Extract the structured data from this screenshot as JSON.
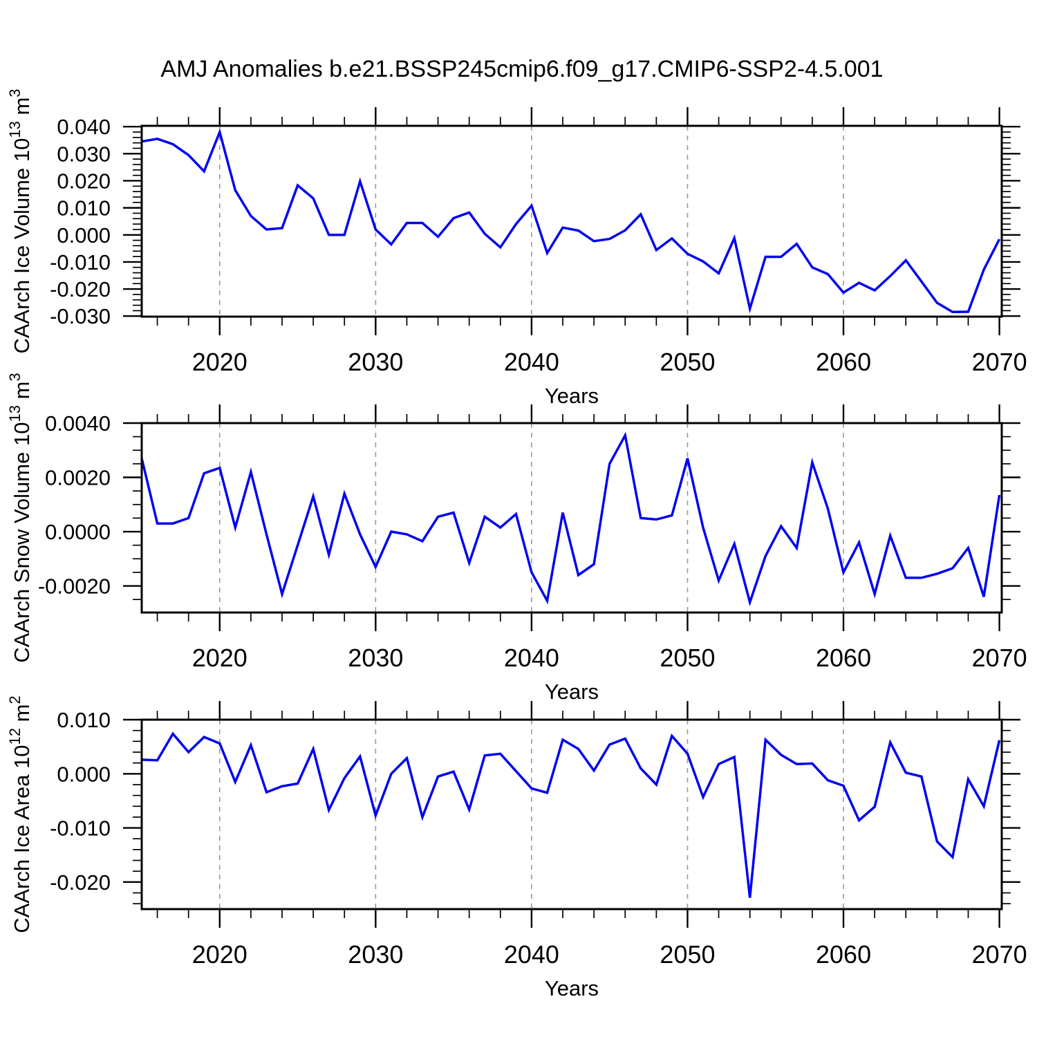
{
  "title": "AMJ Anomalies b.e21.BSSP245cmip6.f09_g17.CMIP6-SSP2-4.5.001",
  "style": {
    "line_color": "#0000f2",
    "grid_color": "#999999",
    "axis_color": "#000000",
    "text_color": "#000000"
  },
  "chart_data": {
    "type": "line",
    "x_label": "Years",
    "x": [
      2015,
      2016,
      2017,
      2018,
      2019,
      2020,
      2021,
      2022,
      2023,
      2024,
      2025,
      2026,
      2027,
      2028,
      2029,
      2030,
      2031,
      2032,
      2033,
      2034,
      2035,
      2036,
      2037,
      2038,
      2039,
      2040,
      2041,
      2042,
      2043,
      2044,
      2045,
      2046,
      2047,
      2048,
      2049,
      2050,
      2051,
      2052,
      2053,
      2054,
      2055,
      2056,
      2057,
      2058,
      2059,
      2060,
      2061,
      2062,
      2063,
      2064,
      2065,
      2066,
      2067,
      2068,
      2069,
      2070
    ],
    "xlim": [
      2015,
      2070.15
    ],
    "x_major_ticks": [
      {
        "v": 2020,
        "t": "2020"
      },
      {
        "v": 2030,
        "t": "2030"
      },
      {
        "v": 2040,
        "t": "2040"
      },
      {
        "v": 2050,
        "t": "2050"
      },
      {
        "v": 2060,
        "t": "2060"
      },
      {
        "v": 2070,
        "t": "2070"
      }
    ],
    "x_minor_start": 2016,
    "x_minor_end": 2068,
    "x_minor_step": 2,
    "grid_years": [
      2020,
      2030,
      2040,
      2050,
      2060
    ],
    "panels": [
      {
        "ylabel": "CAArch Ice Volume 10^13 m^3",
        "ylim": [
          -0.0302,
          0.0403
        ],
        "yticks": [
          {
            "v": 0.04,
            "t": "0.040"
          },
          {
            "v": 0.03,
            "t": "0.030"
          },
          {
            "v": 0.02,
            "t": "0.020"
          },
          {
            "v": 0.01,
            "t": "0.010"
          },
          {
            "v": 0.0,
            "t": "0.000"
          },
          {
            "v": -0.01,
            "t": "-0.010"
          },
          {
            "v": -0.02,
            "t": "-0.020"
          },
          {
            "v": -0.03,
            "t": "-0.030"
          }
        ],
        "y_minor_step": 0.002,
        "values": [
          0.0345,
          0.0355,
          0.0335,
          0.0295,
          0.0235,
          0.038,
          0.0165,
          0.007,
          0.002,
          0.0025,
          0.0183,
          0.0135,
          0.0,
          0.0,
          0.0198,
          0.002,
          -0.0035,
          0.0044,
          0.0044,
          -0.0007,
          0.0062,
          0.0083,
          0.0004,
          -0.0046,
          0.004,
          0.0108,
          -0.0067,
          0.0027,
          0.0016,
          -0.0023,
          -0.0015,
          0.0017,
          0.0076,
          -0.0056,
          -0.0013,
          -0.007,
          -0.0098,
          -0.0142,
          -0.0012,
          -0.0273,
          -0.0081,
          -0.0081,
          -0.0033,
          -0.012,
          -0.0145,
          -0.0213,
          -0.0177,
          -0.0205,
          -0.0152,
          -0.0094,
          -0.0172,
          -0.0251,
          -0.0285,
          -0.0284,
          -0.0128,
          -0.0016
        ]
      },
      {
        "ylabel": "CAArch Snow Volume 10^13 m^3",
        "ylim": [
          -0.00298,
          0.004
        ],
        "yticks": [
          {
            "v": 0.004,
            "t": "0.0040"
          },
          {
            "v": 0.002,
            "t": "0.0020"
          },
          {
            "v": 0.0,
            "t": "0.0000"
          },
          {
            "v": -0.002,
            "t": "-0.0020"
          }
        ],
        "y_minor_step": 0.0005,
        "values": [
          0.0027,
          0.0003,
          0.0003,
          0.0005,
          0.00215,
          0.00235,
          0.00015,
          0.0022,
          -0.0001,
          -0.0023,
          -0.0005,
          0.0013,
          -0.00085,
          0.0014,
          -0.0001,
          -0.0013,
          0.0,
          -0.0001,
          -0.00035,
          0.00055,
          0.0007,
          -0.00115,
          0.00055,
          0.00015,
          0.00065,
          -0.0015,
          -0.00255,
          0.0007,
          -0.0016,
          -0.0012,
          0.0025,
          0.00355,
          0.0005,
          0.00045,
          0.0006,
          0.0027,
          0.00015,
          -0.0018,
          -0.00045,
          -0.0026,
          -0.0009,
          0.0002,
          -0.0006,
          0.00255,
          0.00085,
          -0.0015,
          -0.0004,
          -0.0023,
          -0.00015,
          -0.0017,
          -0.0017,
          -0.00155,
          -0.00135,
          -0.0006,
          -0.0024,
          0.00135
        ]
      },
      {
        "ylabel": "CAArch Ice Area 10^12 m^2",
        "ylim": [
          -0.025,
          0.01
        ],
        "yticks": [
          {
            "v": 0.01,
            "t": "0.010"
          },
          {
            "v": 0.0,
            "t": "0.000"
          },
          {
            "v": -0.01,
            "t": "-0.010"
          },
          {
            "v": -0.02,
            "t": "-0.020"
          }
        ],
        "y_minor_step": 0.002,
        "values": [
          0.0026,
          0.0025,
          0.0074,
          0.004,
          0.0068,
          0.0056,
          -0.0015,
          0.0053,
          -0.0034,
          -0.0023,
          -0.0018,
          0.0046,
          -0.0067,
          -0.0008,
          0.0032,
          -0.0077,
          0.0,
          0.0029,
          -0.008,
          -0.0005,
          0.0004,
          -0.0066,
          0.0034,
          0.0037,
          0.0005,
          -0.0027,
          -0.0035,
          0.0063,
          0.0046,
          0.0006,
          0.0054,
          0.0065,
          0.001,
          -0.002,
          0.007,
          0.0037,
          -0.0043,
          0.0018,
          0.0031,
          -0.0229,
          0.0063,
          0.0035,
          0.0018,
          0.0019,
          -0.0012,
          -0.0022,
          -0.0086,
          -0.0061,
          0.0058,
          0.0002,
          -0.0005,
          -0.0125,
          -0.0154,
          -0.001,
          -0.006,
          0.0062
        ]
      }
    ]
  }
}
